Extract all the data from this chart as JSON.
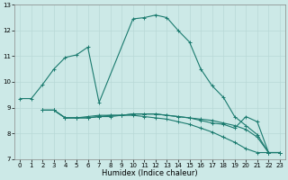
{
  "xlabel": "Humidex (Indice chaleur)",
  "xlim": [
    -0.5,
    23.5
  ],
  "ylim": [
    7,
    13
  ],
  "yticks": [
    7,
    8,
    9,
    10,
    11,
    12,
    13
  ],
  "xticks": [
    0,
    1,
    2,
    3,
    4,
    5,
    6,
    7,
    8,
    9,
    10,
    11,
    12,
    13,
    14,
    15,
    16,
    17,
    18,
    19,
    20,
    21,
    22,
    23
  ],
  "bg_color": "#cce9e7",
  "grid_color": "#b8d8d6",
  "line_color": "#1a7a6e",
  "series": [
    {
      "x": [
        0,
        1,
        2,
        3,
        4,
        5,
        6,
        7,
        10,
        11,
        12,
        13,
        14,
        15,
        16,
        17,
        18,
        19,
        20,
        21,
        22,
        23
      ],
      "y": [
        9.35,
        9.35,
        9.9,
        10.5,
        10.95,
        11.05,
        11.35,
        9.2,
        12.45,
        12.5,
        12.6,
        12.5,
        12.0,
        11.55,
        10.5,
        9.85,
        9.4,
        8.65,
        8.3,
        7.95,
        7.25,
        7.25
      ]
    },
    {
      "x": [
        2,
        3,
        4,
        5,
        6,
        7,
        8,
        9,
        10,
        11,
        12,
        13,
        14,
        15,
        16,
        17,
        18,
        19,
        20,
        21,
        22,
        23
      ],
      "y": [
        8.9,
        8.9,
        8.6,
        8.6,
        8.6,
        8.65,
        8.65,
        8.7,
        8.75,
        8.75,
        8.75,
        8.7,
        8.65,
        8.6,
        8.55,
        8.5,
        8.4,
        8.3,
        8.15,
        7.85,
        7.25,
        7.25
      ]
    },
    {
      "x": [
        2,
        3,
        4,
        5,
        6,
        7,
        8,
        9,
        10,
        11,
        12,
        13,
        14,
        15,
        16,
        17,
        18,
        19,
        20,
        21,
        22,
        23
      ],
      "y": [
        8.9,
        8.9,
        8.6,
        8.6,
        8.6,
        8.65,
        8.7,
        8.7,
        8.75,
        8.75,
        8.75,
        8.7,
        8.65,
        8.6,
        8.5,
        8.4,
        8.35,
        8.2,
        8.65,
        8.45,
        7.25,
        7.25
      ]
    },
    {
      "x": [
        2,
        3,
        4,
        5,
        6,
        7,
        8,
        9,
        10,
        11,
        12,
        13,
        14,
        15,
        16,
        17,
        18,
        19,
        20,
        21,
        22,
        23
      ],
      "y": [
        8.9,
        8.9,
        8.6,
        8.6,
        8.65,
        8.7,
        8.7,
        8.7,
        8.7,
        8.65,
        8.6,
        8.55,
        8.45,
        8.35,
        8.2,
        8.05,
        7.85,
        7.65,
        7.4,
        7.25,
        7.25,
        7.25
      ]
    }
  ]
}
